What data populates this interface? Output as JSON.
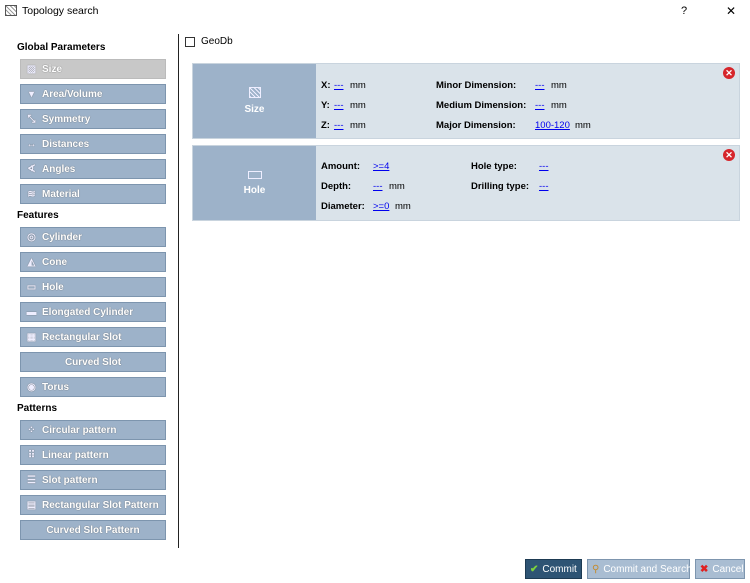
{
  "window": {
    "title": "Topology search",
    "help": "?",
    "close": "✕"
  },
  "geodb": {
    "label": "GeoDb",
    "checked": false
  },
  "sidebar": {
    "global_header": "Global Parameters",
    "global": [
      {
        "label": "Size",
        "icon": "size-icon",
        "selected": true
      },
      {
        "label": "Area/Volume",
        "icon": "area-volume-icon"
      },
      {
        "label": "Symmetry",
        "icon": "symmetry-icon"
      },
      {
        "label": "Distances",
        "icon": "distances-icon"
      },
      {
        "label": "Angles",
        "icon": "angles-icon"
      },
      {
        "label": "Material",
        "icon": "material-icon"
      }
    ],
    "features_header": "Features",
    "features": [
      {
        "label": "Cylinder",
        "icon": "cylinder-icon"
      },
      {
        "label": "Cone",
        "icon": "cone-icon"
      },
      {
        "label": "Hole",
        "icon": "hole-icon"
      },
      {
        "label": "Elongated Cylinder",
        "icon": "elongated-cylinder-icon"
      },
      {
        "label": "Rectangular Slot",
        "icon": "rectangular-slot-icon"
      },
      {
        "label": "Curved Slot",
        "icon": null
      },
      {
        "label": "Torus",
        "icon": "torus-icon"
      }
    ],
    "patterns_header": "Patterns",
    "patterns": [
      {
        "label": "Circular pattern",
        "icon": "circular-pattern-icon"
      },
      {
        "label": "Linear pattern",
        "icon": "linear-pattern-icon"
      },
      {
        "label": "Slot pattern",
        "icon": "slot-pattern-icon"
      },
      {
        "label": "Rectangular Slot Pattern",
        "icon": "rectangular-slot-pattern-icon"
      },
      {
        "label": "Curved Slot Pattern",
        "icon": null
      }
    ]
  },
  "size_card": {
    "title": "Size",
    "x_label": "X:",
    "x_val": "---",
    "y_label": "Y:",
    "y_val": "---",
    "z_label": "Z:",
    "z_val": "---",
    "unit": "mm",
    "minor_label": "Minor Dimension:",
    "minor_val": "---",
    "medium_label": "Medium Dimension:",
    "medium_val": "---",
    "major_label": "Major Dimension:",
    "major_val": "100-120"
  },
  "hole_card": {
    "title": "Hole",
    "amount_label": "Amount:",
    "amount_val": ">=4",
    "depth_label": "Depth:",
    "depth_val": "---",
    "diameter_label": "Diameter:",
    "diameter_val": ">=0",
    "unit": "mm",
    "hole_type_label": "Hole type:",
    "hole_type_val": "---",
    "drilling_label": "Drilling type:",
    "drilling_val": "---"
  },
  "footer": {
    "commit": "Commit",
    "commit_search": "Commit and Search",
    "cancel": "Cancel"
  }
}
